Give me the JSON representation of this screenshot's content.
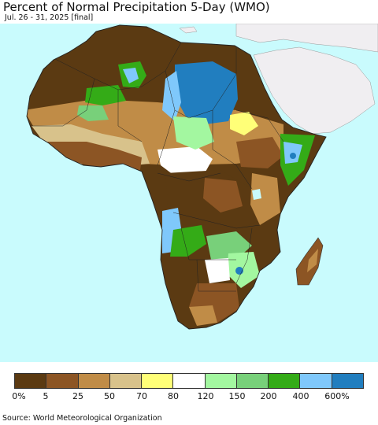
{
  "title": "Percent of Normal Precipitation 5-Day (WMO)",
  "subtitle": "Jul. 26 - 31, 2025 [final]",
  "source": "Source: World Meteorological Organization",
  "colors": {
    "ocean": "#c9fbfd",
    "outside_land": "#f0eef1"
  },
  "legend": {
    "colors": [
      "#5b3a12",
      "#8c5524",
      "#c08c47",
      "#d8c28b",
      "#ffff78",
      "#ffffff",
      "#a3f7a0",
      "#78d07a",
      "#34ab17",
      "#7fc8fb",
      "#217ebf"
    ],
    "ticks": [
      "0%",
      "5",
      "25",
      "50",
      "70",
      "80",
      "120",
      "150",
      "200",
      "400",
      "600%"
    ]
  }
}
